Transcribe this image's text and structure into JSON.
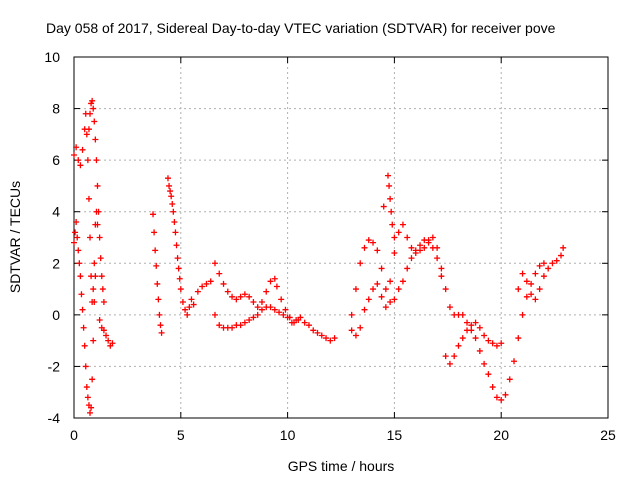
{
  "chart_data": {
    "type": "scatter",
    "title": "Day 058 of 2017, Sidereal Day-to-day VTEC variation (SDTVAR) for receiver pove",
    "xlabel": "GPS time / hours",
    "ylabel": "SDTVAR / TECUs",
    "xlim": [
      0,
      25
    ],
    "ylim": [
      -4,
      10
    ],
    "x_ticks": [
      0,
      5,
      10,
      15,
      20,
      25
    ],
    "y_ticks": [
      -4,
      -2,
      0,
      2,
      4,
      6,
      8,
      10
    ],
    "grid": true,
    "marker": "+",
    "color": "#ff0000",
    "series": [
      {
        "name": "SDTVAR",
        "segments": [
          {
            "x": [
              0.0,
              0.1,
              0.2,
              0.3,
              0.4,
              0.5,
              0.55,
              0.6,
              0.65,
              0.7,
              0.75,
              0.8,
              0.85,
              0.9,
              0.95,
              1.0,
              1.05,
              1.1
            ],
            "y": [
              6.2,
              6.5,
              6.0,
              5.8,
              6.4,
              7.2,
              7.8,
              7.0,
              6.0,
              4.5,
              3.0,
              1.5,
              0.5,
              1.0,
              2.0,
              3.5,
              4.0,
              3.5
            ]
          },
          {
            "x": [
              0.0,
              0.05,
              0.1,
              0.15,
              0.2,
              0.25,
              0.3,
              0.35,
              0.4,
              0.45,
              0.5,
              0.55,
              0.6,
              0.65,
              0.7,
              0.75,
              0.8,
              0.85,
              0.9,
              0.95,
              1.0
            ],
            "y": [
              2.8,
              3.2,
              3.6,
              3.0,
              2.5,
              2.0,
              1.5,
              0.8,
              0.2,
              -0.5,
              -1.2,
              -2.0,
              -2.8,
              -3.2,
              -3.5,
              -3.8,
              -3.6,
              -2.5,
              -1.0,
              0.5,
              1.5
            ]
          },
          {
            "x": [
              0.7,
              0.75,
              0.8,
              0.85,
              0.9,
              0.95,
              1.0,
              1.05,
              1.1,
              1.15,
              1.2,
              1.25,
              1.3,
              1.35,
              1.4
            ],
            "y": [
              7.2,
              7.8,
              8.2,
              8.3,
              8.0,
              7.5,
              6.8,
              6.0,
              5.0,
              4.0,
              3.0,
              2.2,
              1.5,
              1.0,
              0.5
            ]
          },
          {
            "x": [
              1.2,
              1.3,
              1.4,
              1.5,
              1.6,
              1.7,
              1.8
            ],
            "y": [
              -0.2,
              -0.5,
              -0.6,
              -0.8,
              -1.0,
              -1.2,
              -1.1
            ]
          },
          {
            "x": [
              3.7,
              3.75,
              3.8,
              3.85,
              3.9,
              3.95,
              4.0,
              4.05,
              4.1
            ],
            "y": [
              3.9,
              3.2,
              2.5,
              1.9,
              1.2,
              0.6,
              0.0,
              -0.4,
              -0.7
            ]
          },
          {
            "x": [
              4.4,
              4.45,
              4.5,
              4.55,
              4.6,
              4.65,
              4.7,
              4.75,
              4.8,
              4.85,
              4.9,
              4.95,
              5.0,
              5.1,
              5.2,
              5.3,
              5.4,
              5.5,
              5.6
            ],
            "y": [
              5.3,
              5.0,
              4.8,
              4.6,
              4.3,
              4.0,
              3.6,
              3.2,
              2.7,
              2.2,
              1.8,
              1.4,
              1.0,
              0.5,
              0.2,
              0.0,
              0.3,
              0.6,
              0.4
            ]
          },
          {
            "x": [
              5.8,
              6.0,
              6.2,
              6.4
            ],
            "y": [
              0.9,
              1.1,
              1.2,
              1.3
            ]
          },
          {
            "x": [
              6.6,
              6.8,
              7.0,
              7.2,
              7.4,
              7.6,
              7.8,
              8.0,
              8.2,
              8.4,
              8.6,
              8.8,
              9.0,
              9.2,
              9.4,
              9.5,
              9.7,
              9.9,
              10.1,
              10.3,
              10.5
            ],
            "y": [
              2.0,
              1.6,
              1.2,
              0.9,
              0.7,
              0.6,
              0.7,
              0.8,
              0.7,
              0.5,
              0.3,
              0.5,
              0.9,
              1.3,
              1.4,
              1.1,
              0.6,
              0.2,
              -0.1,
              -0.3,
              -0.2
            ]
          },
          {
            "x": [
              6.6,
              6.8,
              7.0,
              7.2,
              7.4,
              7.6,
              7.8,
              8.0,
              8.2,
              8.4,
              8.6,
              8.8,
              9.0,
              9.2,
              9.4,
              9.6,
              9.8,
              10.0,
              10.2,
              10.4,
              10.6,
              10.8,
              11.0,
              11.2,
              11.4,
              11.6,
              11.8,
              12.0,
              12.2
            ],
            "y": [
              0.0,
              -0.4,
              -0.5,
              -0.5,
              -0.5,
              -0.4,
              -0.4,
              -0.3,
              -0.2,
              -0.1,
              0.0,
              0.2,
              0.3,
              0.3,
              0.2,
              0.1,
              0.0,
              -0.1,
              -0.3,
              -0.2,
              -0.1,
              -0.3,
              -0.4,
              -0.6,
              -0.7,
              -0.8,
              -0.9,
              -1.0,
              -0.9
            ]
          },
          {
            "x": [
              13.0,
              13.2,
              13.4,
              13.6,
              13.8,
              14.0,
              14.2,
              14.4,
              14.6,
              14.8,
              15.0,
              15.2,
              15.4,
              15.6,
              15.8,
              16.0,
              16.2,
              16.4,
              16.6,
              16.8,
              17.0,
              17.2,
              17.4,
              17.6,
              17.8,
              18.0,
              18.2,
              18.4,
              18.6,
              18.8,
              19.0,
              19.2,
              19.4,
              19.6,
              19.8,
              20.0,
              20.2,
              20.4,
              20.6,
              20.8,
              21.0,
              21.2,
              21.4,
              21.6,
              21.8,
              22.0
            ],
            "y": [
              0.0,
              1.0,
              2.0,
              2.6,
              2.9,
              2.8,
              2.5,
              1.8,
              1.0,
              0.5,
              0.6,
              1.0,
              1.3,
              1.8,
              2.2,
              2.5,
              2.7,
              2.9,
              2.8,
              2.6,
              2.2,
              1.8,
              1.0,
              0.3,
              0.0,
              0.0,
              0.0,
              -0.3,
              -0.6,
              -0.9,
              -1.4,
              -1.9,
              -2.3,
              -2.8,
              -3.2,
              -3.3,
              -3.1,
              -2.5,
              -1.8,
              -0.9,
              0.0,
              0.7,
              1.2,
              1.6,
              1.9,
              2.0
            ]
          },
          {
            "x": [
              13.0,
              13.2,
              13.4,
              13.6,
              13.8,
              14.0,
              14.2,
              14.4,
              14.6,
              14.8,
              15.0,
              15.2,
              15.4,
              15.6,
              15.8,
              16.0,
              16.2,
              16.4,
              16.6,
              16.8,
              17.0,
              17.2,
              17.4,
              17.6,
              17.8,
              18.0,
              18.2,
              18.4,
              18.6,
              18.8,
              19.0,
              19.2,
              19.4,
              19.6,
              19.8,
              20.0
            ],
            "y": [
              -0.6,
              -0.8,
              -0.5,
              0.2,
              0.6,
              1.0,
              1.2,
              0.7,
              0.3,
              1.3,
              2.4,
              3.2,
              3.5,
              3.0,
              2.6,
              2.4,
              2.5,
              2.6,
              2.9,
              3.0,
              2.6,
              1.5,
              -1.6,
              -1.9,
              -1.6,
              -1.2,
              -0.9,
              -0.6,
              -0.4,
              -0.3,
              -0.5,
              -0.8,
              -1.0,
              -1.1,
              -1.2,
              -1.1
            ]
          },
          {
            "x": [
              14.5,
              14.7,
              14.75,
              14.8,
              14.85,
              14.9,
              15.0
            ],
            "y": [
              4.2,
              5.4,
              5.0,
              4.5,
              4.0,
              3.5,
              3.0
            ]
          },
          {
            "x": [
              20.8,
              21.0,
              21.2,
              21.4,
              21.6,
              21.8,
              22.0,
              22.2,
              22.4,
              22.6,
              22.8,
              22.9
            ],
            "y": [
              1.0,
              1.6,
              1.3,
              0.8,
              0.6,
              1.0,
              1.5,
              1.8,
              2.0,
              2.1,
              2.3,
              2.6
            ]
          }
        ]
      }
    ]
  }
}
